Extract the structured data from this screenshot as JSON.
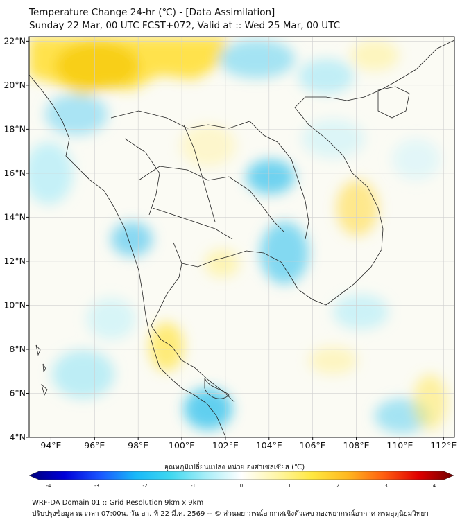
{
  "title": {
    "line1": "Temperature Change 24-hr (℃) - [Data Assimilation]",
    "line2": "Sunday 22 Mar, 00 UTC FCST+072, Valid at :: Wed 25 Mar, 00 UTC"
  },
  "map": {
    "lon_range": [
      93,
      112.5
    ],
    "lat_range": [
      4,
      22.2
    ],
    "lon_ticks": [
      "94°E",
      "96°E",
      "98°E",
      "100°E",
      "102°E",
      "104°E",
      "106°E",
      "108°E",
      "110°E",
      "112°E"
    ],
    "lat_ticks": [
      "4°N",
      "6°N",
      "8°N",
      "10°N",
      "12°N",
      "14°N",
      "16°N",
      "18°N",
      "20°N",
      "22°N"
    ],
    "grid": true
  },
  "colorbar": {
    "title": "อุณหภูมิเปลี่ยนแปลง หน่วย องศาเซลเซียส (℃)",
    "ticks": [
      "-4",
      "-3",
      "-2",
      "-1",
      "0",
      "1",
      "2",
      "3",
      "4"
    ],
    "range": [
      -4,
      4
    ],
    "colors": [
      "#00007a",
      "#0000d8",
      "#1a55ff",
      "#18b8f8",
      "#3fd8f0",
      "#a8eef8",
      "#ffffff",
      "#fff6a8",
      "#ffe840",
      "#ffb820",
      "#ff6010",
      "#e00000",
      "#700000"
    ]
  },
  "footer": {
    "line1": "WRF-DA Domain 01 :: Grid Resolution 9km x 9km",
    "line2": "ปรับปรุงข้อมูล ณ เวลา 07:00น. วัน อา. ที่ 22 มี.ค. 2569 -- © ส่วนพยากรณ์อากาศเชิงตัวเลข กองพยากรณ์อากาศ กรมอุตุนิยมวิทยา"
  }
}
